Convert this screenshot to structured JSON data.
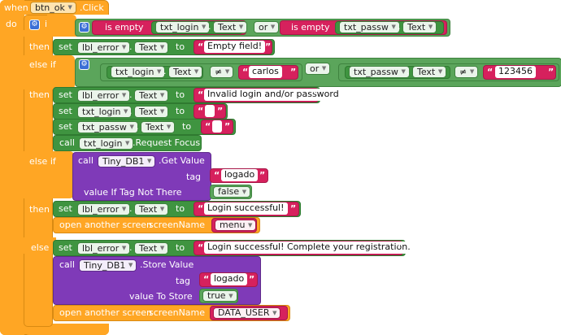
{
  "event": {
    "when_label": "when",
    "component": "btn_ok",
    "event_name": ".Click",
    "do_label": "do"
  },
  "keywords": {
    "if": "if",
    "else_if": "else if",
    "then": "then",
    "else": "else",
    "set": "set",
    "to": "to",
    "call": "call",
    "or": "or",
    "is_empty": "is empty",
    "text_prop": "Text",
    "dot": ".",
    "neq": "≠",
    "open_screen": "open another screen",
    "screen_name": "screenName",
    "tag": "tag",
    "value_if_tag_not_there": "value If Tag Not There",
    "value_to_store": "value To Store",
    "get_value": ".Get Value",
    "store_value": ".Store Value",
    "request_focus": ".Request Focus"
  },
  "components": {
    "txt_login": "txt_login",
    "txt_passw": "txt_passw",
    "lbl_error": "lbl_error",
    "tiny_db": "Tiny_DB1"
  },
  "strings": {
    "empty_field": "Empty field!",
    "carlos": "carlos",
    "pass_value": "123456",
    "invalid": "Invalid login and/or password",
    "blank": "",
    "logado": "logado",
    "login_successful": "Login successful!",
    "login_successful_complete": "Login successful! Complete your registration.",
    "menu": "menu",
    "data_user": "DATA_USER"
  },
  "booleans": {
    "false_value": "false",
    "true_value": "true"
  },
  "colors": {
    "event_block": "#FFA624",
    "control_block": "#FFA624",
    "logic_block": "#5BA55B",
    "component_block": "#3F9440",
    "text_block": "#D6215D",
    "tinydb_block": "#7F3AB8",
    "mutator_gear": "#3b6fd6"
  }
}
